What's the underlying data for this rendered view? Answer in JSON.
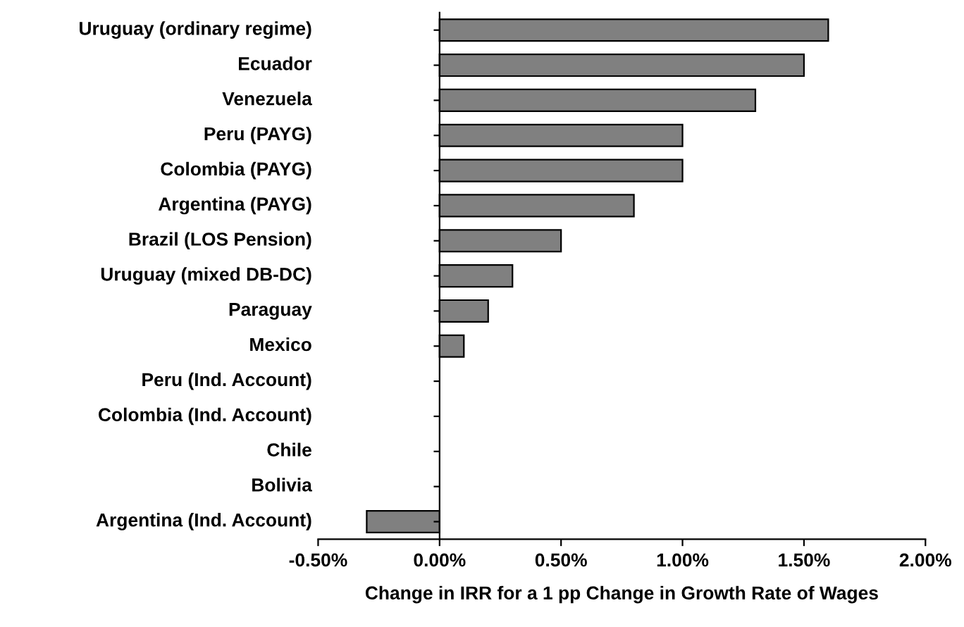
{
  "chart_data": {
    "type": "bar",
    "orientation": "horizontal",
    "xlabel": "Change in IRR for a 1 pp Change in Growth Rate of Wages",
    "categories": [
      "Uruguay (ordinary regime)",
      "Ecuador",
      "Venezuela",
      "Peru (PAYG)",
      "Colombia (PAYG)",
      "Argentina (PAYG)",
      "Brazil (LOS Pension)",
      "Uruguay (mixed DB-DC)",
      "Paraguay",
      "Mexico",
      "Peru (Ind. Account)",
      "Colombia (Ind. Account)",
      "Chile",
      "Bolivia",
      "Argentina (Ind. Account)"
    ],
    "values": [
      1.6,
      1.5,
      1.3,
      1.0,
      1.0,
      0.8,
      0.5,
      0.3,
      0.2,
      0.1,
      0,
      0,
      0,
      0,
      -0.3
    ],
    "color": "#808080",
    "xlim": [
      -0.5,
      2.0
    ],
    "xticks": [
      {
        "value": -0.5,
        "label": "-0.50%"
      },
      {
        "value": 0,
        "label": "0.00%"
      },
      {
        "value": 0.5,
        "label": "0.50%"
      },
      {
        "value": 1.0,
        "label": "1.00%"
      },
      {
        "value": 1.5,
        "label": "1.50%"
      },
      {
        "value": 2.0,
        "label": "2.00%"
      }
    ],
    "legend": false
  }
}
